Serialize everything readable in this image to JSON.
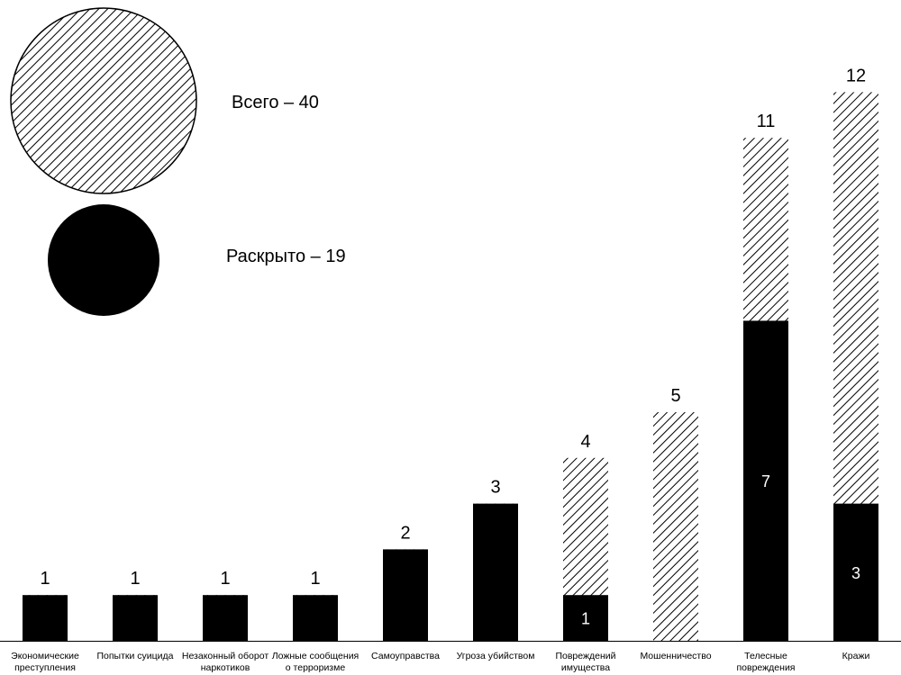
{
  "legend": {
    "total_label": "Всего – 40",
    "solved_label": "Раскрыто – 19"
  },
  "colors": {
    "total_pattern": "#000000",
    "solved_fill": "#000000",
    "background": "#ffffff"
  },
  "chart_data": {
    "type": "bar",
    "stacked": "overlay",
    "categories": [
      [
        "Экономические",
        "преступления"
      ],
      [
        "Попытки суицида"
      ],
      [
        "Незаконный оборот",
        "наркотиков"
      ],
      [
        "Ложные сообщения",
        "о терроризме"
      ],
      [
        "Самоуправства"
      ],
      [
        "Угроза убийством"
      ],
      [
        "Повреждений",
        "имущества"
      ],
      [
        "Мошенничество"
      ],
      [
        "Телесные",
        "повреждения"
      ],
      [
        "Кражи"
      ]
    ],
    "series": [
      {
        "name": "Всего",
        "values": [
          1,
          1,
          1,
          1,
          2,
          3,
          4,
          5,
          11,
          12
        ],
        "style": "hatched"
      },
      {
        "name": "Раскрыто",
        "values": [
          1,
          1,
          1,
          1,
          2,
          3,
          1,
          0,
          7,
          3
        ],
        "style": "solid"
      }
    ],
    "inner_labels": [
      null,
      null,
      null,
      null,
      null,
      null,
      "1",
      null,
      "7",
      "3"
    ],
    "top_labels": [
      "1",
      "1",
      "1",
      "1",
      "2",
      "3",
      "4",
      "5",
      "11",
      "12"
    ],
    "ylim": [
      0,
      12.5
    ],
    "grid": false,
    "legend_position": "top-left"
  }
}
